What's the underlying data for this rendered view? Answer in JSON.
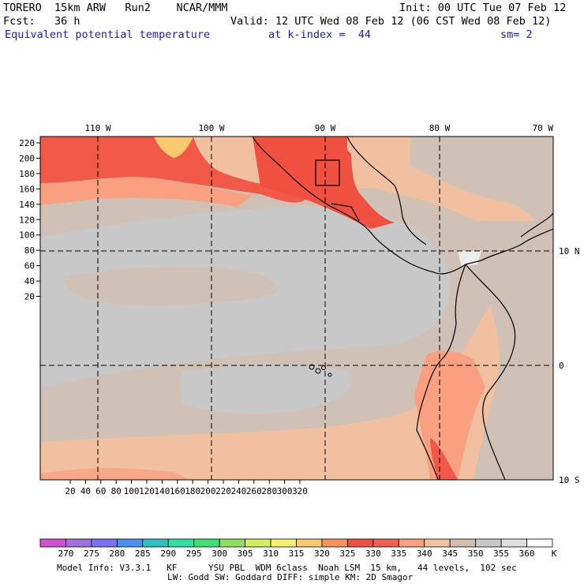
{
  "header": {
    "model": "TORERO  15km ARW   Run2    NCAR/MMM",
    "init": "Init: 00 UTC Tue 07 Feb 12",
    "fcst": "Fcst:   36 h",
    "valid": "Valid: 12 UTC Wed 08 Feb 12 (06 CST Wed 08 Feb 12)",
    "field": "Equivalent potential temperature",
    "level": "at k-index =  44",
    "smooth": "sm= 2"
  },
  "map": {
    "top_lon_labels": [
      "110 W",
      "100 W",
      "90 W",
      "80 W",
      "70 W"
    ],
    "right_lat_labels": [
      "10 N",
      "0",
      "10 S"
    ],
    "grid_y_labels": [
      "220",
      "200",
      "180",
      "160",
      "140",
      "120",
      "100",
      "80",
      "60",
      "40",
      "20"
    ],
    "grid_x_labels": [
      "20",
      "40",
      "60",
      "80",
      "100",
      "120",
      "140",
      "160",
      "180",
      "200",
      "220",
      "240",
      "260",
      "280",
      "300",
      "320"
    ]
  },
  "colorbar": {
    "labels": [
      "270",
      "275",
      "280",
      "285",
      "290",
      "295",
      "300",
      "305",
      "310",
      "315",
      "320",
      "325",
      "330",
      "335",
      "340",
      "345",
      "350",
      "355",
      "360"
    ],
    "unit": "K",
    "colors": [
      "#d050d0",
      "#a070e0",
      "#7a70f0",
      "#4a90f0",
      "#30c0c0",
      "#30e0a0",
      "#40e070",
      "#90e060",
      "#d0f060",
      "#f8f070",
      "#f8c870",
      "#f89060",
      "#f05040",
      "#f06050",
      "#f8a080",
      "#f0c0a0",
      "#d0bfb0",
      "#c8c8c8",
      "#e0e0e0",
      "#ffffff"
    ]
  },
  "footer": {
    "line1": "Model Info: V3.3.1   KF      YSU PBL  WDM 6class  Noah LSM  15 km,   44 levels,  102 sec",
    "line2": "LW: Godd SW: Goddard DIFF: simple KM: 2D Smagor"
  }
}
